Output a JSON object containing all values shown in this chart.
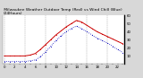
{
  "title": " Milwaukee Weather Outdoor Temp (Red) vs Wind Chill (Blue) (24Hours)",
  "title_fontsize": 3.2,
  "bg_color": "#d8d8d8",
  "plot_bg_color": "#ffffff",
  "hours": [
    0,
    1,
    2,
    3,
    4,
    5,
    6,
    7,
    8,
    9,
    10,
    11,
    12,
    13,
    14,
    15,
    16,
    17,
    18,
    19,
    20,
    21,
    22,
    23
  ],
  "temp_red": [
    10,
    10,
    10,
    10,
    10,
    11,
    13,
    18,
    24,
    30,
    36,
    41,
    46,
    50,
    54,
    52,
    48,
    44,
    40,
    37,
    34,
    31,
    28,
    25
  ],
  "wind_chill_blue": [
    3,
    3,
    3,
    3,
    3,
    4,
    5,
    9,
    15,
    22,
    29,
    35,
    40,
    44,
    47,
    44,
    40,
    36,
    32,
    29,
    26,
    22,
    18,
    14
  ],
  "ylim": [
    0,
    60
  ],
  "grid_color": "#999999",
  "red_color": "#cc0000",
  "blue_color": "#0000bb",
  "tick_fontsize": 2.8,
  "grid_every": 4,
  "xtick_every": 1
}
